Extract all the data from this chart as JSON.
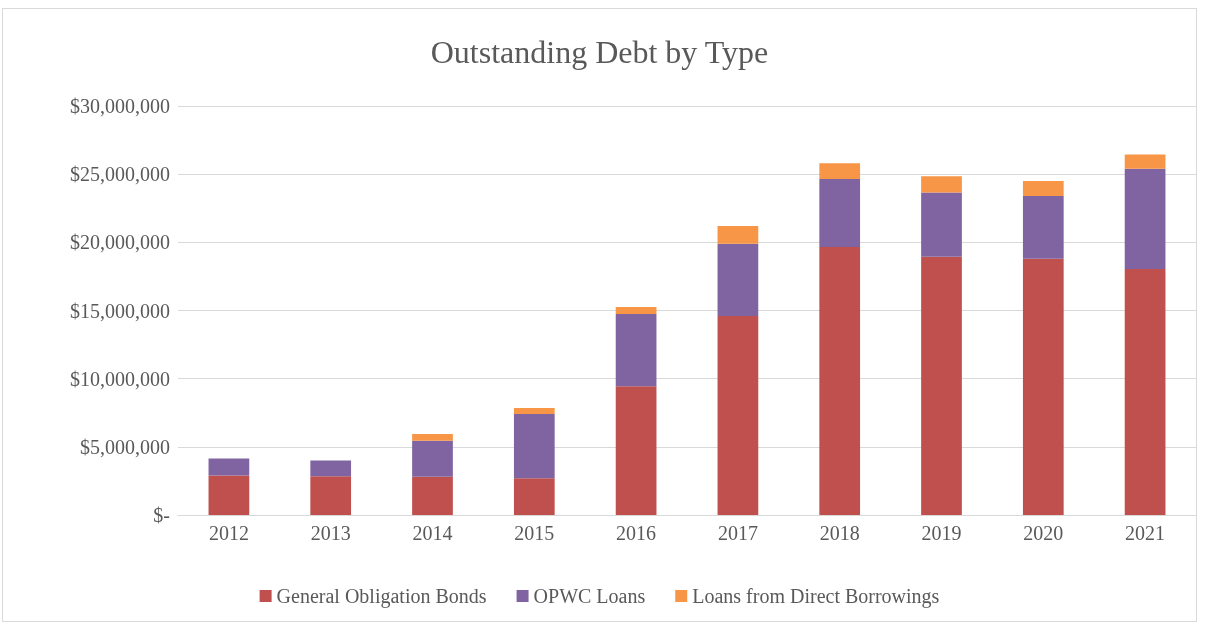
{
  "chart_data": {
    "type": "bar",
    "title": "Outstanding Debt by Type",
    "stacked": true,
    "categories": [
      "2012",
      "2013",
      "2014",
      "2015",
      "2016",
      "2017",
      "2018",
      "2019",
      "2020",
      "2021"
    ],
    "series": [
      {
        "name": "General Obligation Bonds",
        "color": "#c0504d",
        "values": [
          2900000,
          2850000,
          2800000,
          2700000,
          9450000,
          14600000,
          19650000,
          18950000,
          18800000,
          18050000
        ]
      },
      {
        "name": "OPWC Loans",
        "color": "#8064a2",
        "values": [
          1250000,
          1150000,
          2650000,
          4700000,
          5300000,
          5300000,
          5000000,
          4700000,
          4600000,
          7350000
        ]
      },
      {
        "name": "Loans from Direct Borrowings",
        "color": "#f79646",
        "values": [
          0,
          0,
          500000,
          450000,
          500000,
          1300000,
          1150000,
          1200000,
          1100000,
          1050000
        ]
      }
    ],
    "ylim": [
      0,
      30000000
    ],
    "yticks": [
      {
        "value": 0,
        "label": "$-"
      },
      {
        "value": 5000000,
        "label": "$5,000,000"
      },
      {
        "value": 10000000,
        "label": "$10,000,000"
      },
      {
        "value": 15000000,
        "label": "$15,000,000"
      },
      {
        "value": 20000000,
        "label": "$20,000,000"
      },
      {
        "value": 25000000,
        "label": "$25,000,000"
      },
      {
        "value": 30000000,
        "label": "$30,000,000"
      }
    ],
    "grid": "y",
    "legend": "bottom"
  }
}
